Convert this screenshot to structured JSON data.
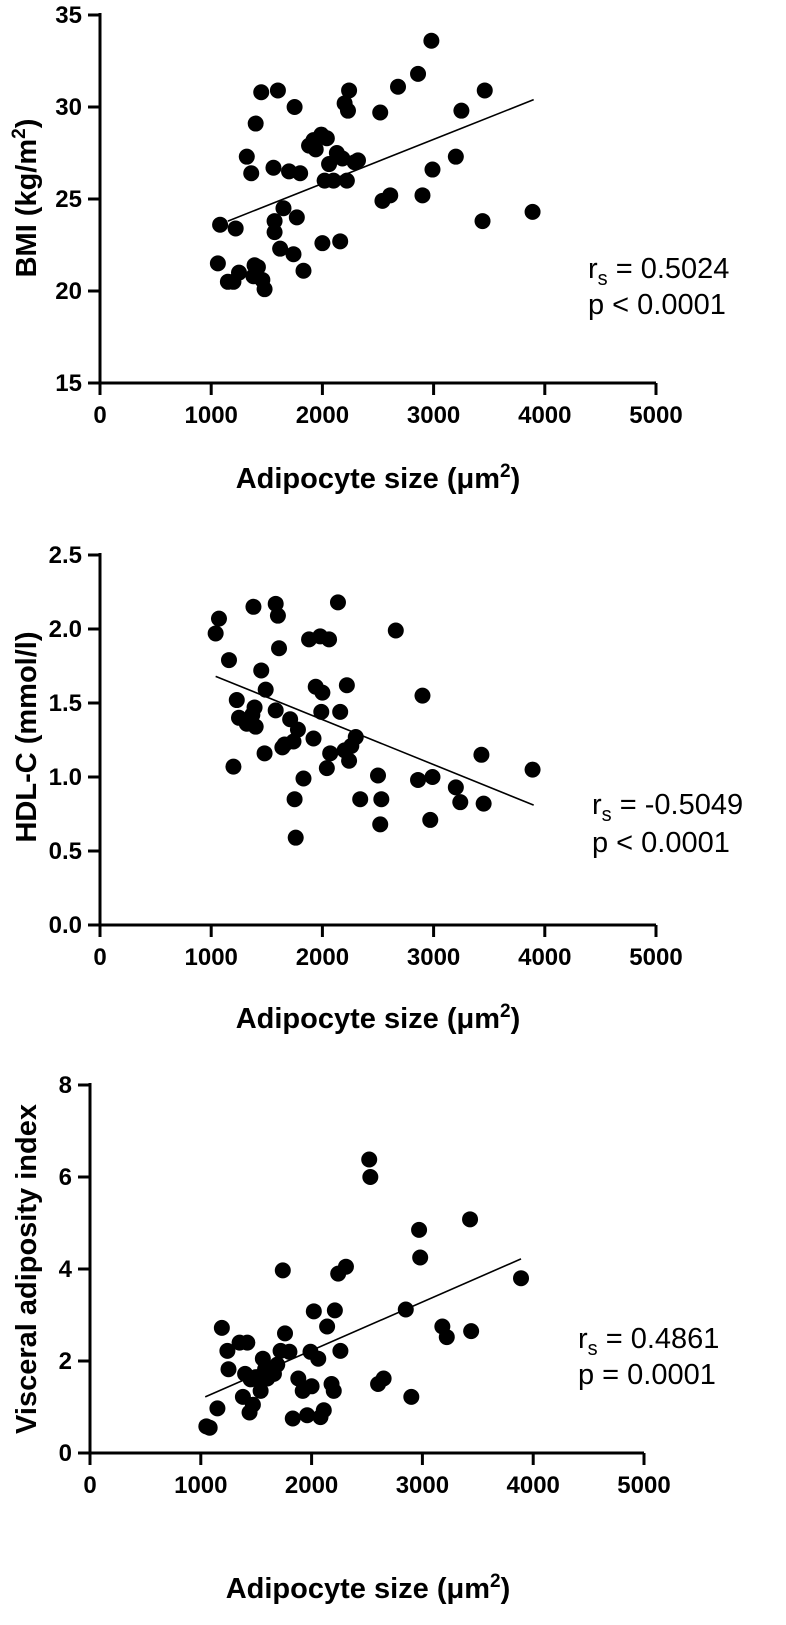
{
  "chart_data": [
    {
      "type": "scatter",
      "xlabel": "Adipocyte size (μm",
      "xlabel_sup": "2",
      "xlabel_end": ")",
      "ylabel": "BMI (kg/m",
      "ylabel_sup": "2",
      "ylabel_end": ")",
      "xlim": [
        0,
        5000
      ],
      "ylim": [
        15,
        35
      ],
      "xticks": [
        "0",
        "1000",
        "2000",
        "3000",
        "4000",
        "5000"
      ],
      "yticks": [
        "15",
        "20",
        "25",
        "30",
        "35"
      ],
      "stat_r_main": "r",
      "stat_r_sub": "s",
      "stat_r_value": " = 0.5024",
      "stat_p": "p < 0.0001",
      "fit_line": [
        [
          1150,
          23.8
        ],
        [
          3900,
          30.4
        ]
      ],
      "points": [
        [
          1060,
          21.5
        ],
        [
          1080,
          23.6
        ],
        [
          1150,
          20.5
        ],
        [
          1200,
          20.5
        ],
        [
          1220,
          23.4
        ],
        [
          1250,
          21.0
        ],
        [
          1320,
          27.3
        ],
        [
          1360,
          26.4
        ],
        [
          1380,
          20.8
        ],
        [
          1390,
          21.4
        ],
        [
          1400,
          29.1
        ],
        [
          1420,
          21.3
        ],
        [
          1450,
          30.8
        ],
        [
          1460,
          20.6
        ],
        [
          1480,
          20.1
        ],
        [
          1560,
          26.7
        ],
        [
          1570,
          23.8
        ],
        [
          1570,
          23.2
        ],
        [
          1600,
          30.9
        ],
        [
          1620,
          22.3
        ],
        [
          1650,
          24.5
        ],
        [
          1700,
          26.5
        ],
        [
          1740,
          22.0
        ],
        [
          1750,
          30.0
        ],
        [
          1770,
          24.0
        ],
        [
          1800,
          26.4
        ],
        [
          1830,
          21.1
        ],
        [
          1880,
          27.9
        ],
        [
          1920,
          28.2
        ],
        [
          1940,
          27.7
        ],
        [
          1990,
          28.5
        ],
        [
          2000,
          22.6
        ],
        [
          2020,
          26.0
        ],
        [
          2040,
          28.3
        ],
        [
          2060,
          26.9
        ],
        [
          2100,
          26.0
        ],
        [
          2130,
          27.5
        ],
        [
          2160,
          22.7
        ],
        [
          2180,
          27.2
        ],
        [
          2200,
          30.2
        ],
        [
          2220,
          26.0
        ],
        [
          2230,
          29.8
        ],
        [
          2240,
          30.9
        ],
        [
          2290,
          27.0
        ],
        [
          2320,
          27.1
        ],
        [
          2520,
          29.7
        ],
        [
          2540,
          24.9
        ],
        [
          2610,
          25.2
        ],
        [
          2680,
          31.1
        ],
        [
          2860,
          31.8
        ],
        [
          2900,
          25.2
        ],
        [
          2980,
          33.6
        ],
        [
          2990,
          26.6
        ],
        [
          3200,
          27.3
        ],
        [
          3250,
          29.8
        ],
        [
          3440,
          23.8
        ],
        [
          3460,
          30.9
        ],
        [
          3890,
          24.3
        ]
      ]
    },
    {
      "type": "scatter",
      "xlabel": "Adipocyte size (μm",
      "xlabel_sup": "2",
      "xlabel_end": ")",
      "ylabel": "HDL-C (mmol/l)",
      "ylabel_sup": "",
      "ylabel_end": "",
      "xlim": [
        0,
        5000
      ],
      "ylim": [
        0.0,
        2.5
      ],
      "xticks": [
        "0",
        "1000",
        "2000",
        "3000",
        "4000",
        "5000"
      ],
      "yticks": [
        "0.0",
        "0.5",
        "1.0",
        "1.5",
        "2.0",
        "2.5"
      ],
      "stat_r_main": "r",
      "stat_r_sub": "s",
      "stat_r_value": " = -0.5049",
      "stat_p": "p < 0.0001",
      "fit_line": [
        [
          1040,
          1.68
        ],
        [
          3900,
          0.81
        ]
      ],
      "points": [
        [
          1040,
          1.97
        ],
        [
          1070,
          2.07
        ],
        [
          1160,
          1.79
        ],
        [
          1200,
          1.07
        ],
        [
          1230,
          1.52
        ],
        [
          1250,
          1.4
        ],
        [
          1320,
          1.36
        ],
        [
          1370,
          1.42
        ],
        [
          1380,
          2.15
        ],
        [
          1390,
          1.47
        ],
        [
          1400,
          1.34
        ],
        [
          1450,
          1.72
        ],
        [
          1480,
          1.16
        ],
        [
          1490,
          1.59
        ],
        [
          1580,
          1.45
        ],
        [
          1580,
          2.17
        ],
        [
          1600,
          2.09
        ],
        [
          1610,
          1.87
        ],
        [
          1640,
          1.2
        ],
        [
          1660,
          1.22
        ],
        [
          1710,
          1.39
        ],
        [
          1740,
          1.24
        ],
        [
          1750,
          0.85
        ],
        [
          1760,
          0.59
        ],
        [
          1780,
          1.32
        ],
        [
          1830,
          0.99
        ],
        [
          1880,
          1.93
        ],
        [
          1920,
          1.26
        ],
        [
          1940,
          1.61
        ],
        [
          1980,
          1.95
        ],
        [
          1990,
          1.44
        ],
        [
          2000,
          1.57
        ],
        [
          2040,
          1.06
        ],
        [
          2060,
          1.93
        ],
        [
          2070,
          1.16
        ],
        [
          2140,
          2.18
        ],
        [
          2160,
          1.44
        ],
        [
          2200,
          1.18
        ],
        [
          2220,
          1.62
        ],
        [
          2240,
          1.11
        ],
        [
          2260,
          1.21
        ],
        [
          2300,
          1.27
        ],
        [
          2340,
          0.85
        ],
        [
          2500,
          1.01
        ],
        [
          2520,
          0.68
        ],
        [
          2530,
          0.85
        ],
        [
          2660,
          1.99
        ],
        [
          2860,
          0.98
        ],
        [
          2900,
          1.55
        ],
        [
          2970,
          0.71
        ],
        [
          2990,
          1.0
        ],
        [
          3200,
          0.93
        ],
        [
          3240,
          0.83
        ],
        [
          3430,
          1.15
        ],
        [
          3450,
          0.82
        ],
        [
          3890,
          1.05
        ]
      ]
    },
    {
      "type": "scatter",
      "xlabel": "Adipocyte size (μm",
      "xlabel_sup": "2",
      "xlabel_end": ")",
      "ylabel": "Visceral adiposity index",
      "ylabel_sup": "",
      "ylabel_end": "",
      "xlim": [
        0,
        5000
      ],
      "ylim": [
        0,
        8
      ],
      "xticks": [
        "0",
        "1000",
        "2000",
        "3000",
        "4000",
        "5000"
      ],
      "yticks": [
        "0",
        "2",
        "4",
        "6",
        "8"
      ],
      "stat_r_main": "r",
      "stat_r_sub": "s",
      "stat_r_value": " = 0.4861",
      "stat_p": "p = 0.0001",
      "fit_line": [
        [
          1040,
          1.22
        ],
        [
          3890,
          4.22
        ]
      ],
      "points": [
        [
          1050,
          0.58
        ],
        [
          1080,
          0.55
        ],
        [
          1150,
          0.97
        ],
        [
          1190,
          2.72
        ],
        [
          1240,
          2.22
        ],
        [
          1250,
          1.82
        ],
        [
          1350,
          2.4
        ],
        [
          1380,
          1.22
        ],
        [
          1400,
          1.72
        ],
        [
          1420,
          2.4
        ],
        [
          1440,
          0.88
        ],
        [
          1450,
          1.6
        ],
        [
          1470,
          1.05
        ],
        [
          1500,
          1.65
        ],
        [
          1540,
          1.35
        ],
        [
          1560,
          2.05
        ],
        [
          1580,
          1.82
        ],
        [
          1600,
          1.62
        ],
        [
          1660,
          1.72
        ],
        [
          1690,
          1.92
        ],
        [
          1720,
          2.22
        ],
        [
          1740,
          3.97
        ],
        [
          1760,
          2.6
        ],
        [
          1800,
          2.2
        ],
        [
          1830,
          0.75
        ],
        [
          1880,
          1.62
        ],
        [
          1920,
          1.35
        ],
        [
          1960,
          0.82
        ],
        [
          1990,
          2.2
        ],
        [
          2000,
          1.45
        ],
        [
          2020,
          3.08
        ],
        [
          2060,
          2.05
        ],
        [
          2080,
          0.78
        ],
        [
          2110,
          0.93
        ],
        [
          2140,
          2.75
        ],
        [
          2180,
          1.5
        ],
        [
          2200,
          1.35
        ],
        [
          2210,
          3.1
        ],
        [
          2240,
          3.9
        ],
        [
          2260,
          2.22
        ],
        [
          2310,
          4.05
        ],
        [
          2520,
          6.38
        ],
        [
          2530,
          6.0
        ],
        [
          2600,
          1.5
        ],
        [
          2650,
          1.62
        ],
        [
          2850,
          3.12
        ],
        [
          2900,
          1.22
        ],
        [
          2970,
          4.85
        ],
        [
          2980,
          4.25
        ],
        [
          3180,
          2.75
        ],
        [
          3220,
          2.52
        ],
        [
          3430,
          5.08
        ],
        [
          3440,
          2.65
        ],
        [
          3890,
          3.8
        ]
      ]
    }
  ]
}
